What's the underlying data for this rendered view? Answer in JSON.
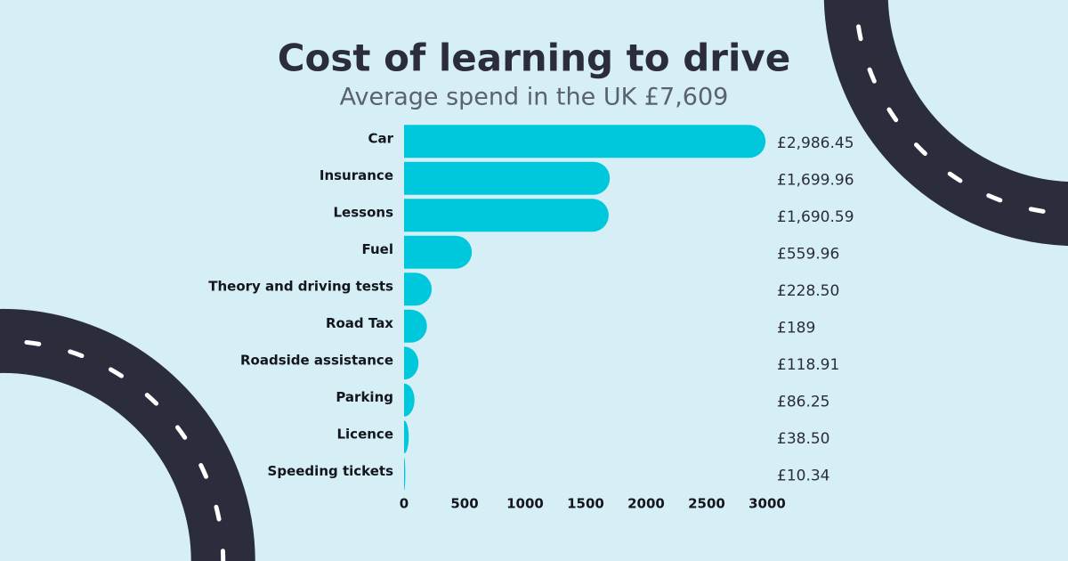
{
  "chart_data": {
    "type": "bar",
    "orientation": "horizontal",
    "title": "Cost of learning to drive",
    "subtitle": "Average spend in the UK £7,609",
    "categories": [
      "Car",
      "Insurance",
      "Lessons",
      "Fuel",
      "Theory and driving tests",
      "Road Tax",
      "Roadside assistance",
      "Parking",
      "Licence",
      "Speeding tickets"
    ],
    "values": [
      2986.45,
      1699.96,
      1690.59,
      559.96,
      228.5,
      189,
      118.91,
      86.25,
      38.5,
      10.34
    ],
    "value_labels": [
      "£2,986.45",
      "£1,699.96",
      "£1,690.59",
      "£559.96",
      "£228.50",
      "£189",
      "£118.91",
      "£86.25",
      "£38.50",
      "£10.34"
    ],
    "color": "#00c8dc",
    "xlim": [
      0,
      3000
    ],
    "xticks": [
      0,
      500,
      1000,
      1500,
      2000,
      2500,
      3000
    ],
    "grid": false
  }
}
